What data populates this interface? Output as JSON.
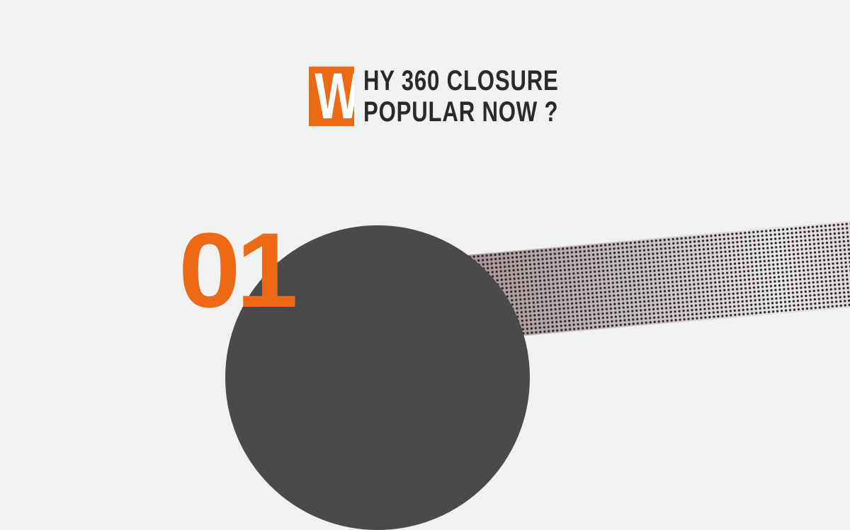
{
  "heading": {
    "drop_cap": "W",
    "line1": "HY 360 CLOSURE",
    "line2": "POPULAR NOW ?"
  },
  "section": {
    "number": "01"
  },
  "colors": {
    "accent": "#ec6a16",
    "text": "#2a2a2a",
    "background": "#f1f1f1",
    "circle": "#4a4a4a"
  }
}
